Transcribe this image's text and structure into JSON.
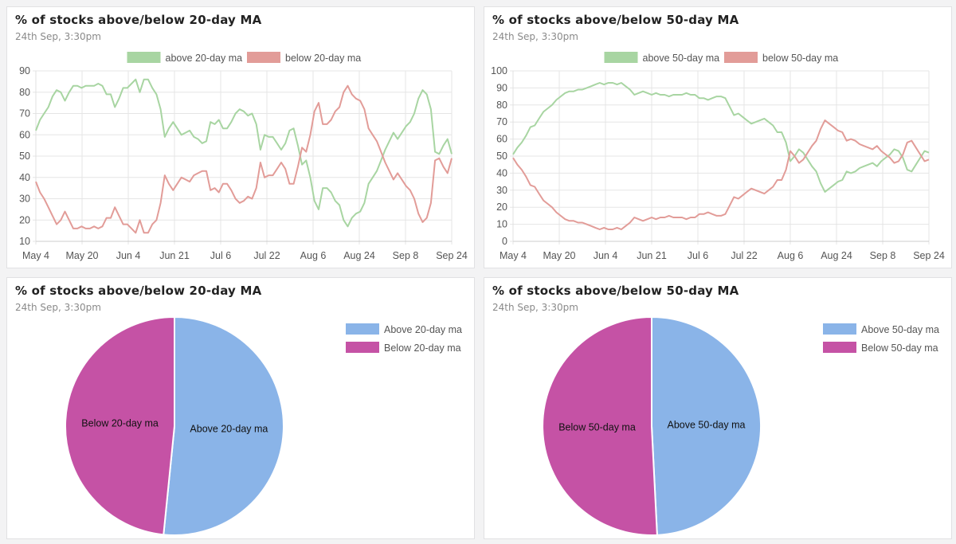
{
  "cards": [
    {
      "title": "% of stocks above/below 20-day MA",
      "subtitle": "24th Sep, 3:30pm"
    },
    {
      "title": "% of stocks above/below 50-day MA",
      "subtitle": "24th Sep, 3:30pm"
    },
    {
      "title": "% of stocks above/below 20-day MA",
      "subtitle": "24th Sep, 3:30pm"
    },
    {
      "title": "% of stocks above/below 50-day MA",
      "subtitle": "24th Sep, 3:30pm"
    }
  ],
  "colors": {
    "above_line": "#a8d5a2",
    "below_line": "#e29c98",
    "pie_above": "#8ab4e8",
    "pie_below": "#c552a5",
    "grid": "#e5e5e5",
    "tick_text": "#555555"
  },
  "chart_data": [
    {
      "type": "line",
      "title": "% of stocks above/below 20-day MA",
      "x_tick_labels": [
        "May 4",
        "May 20",
        "Jun 4",
        "Jun 21",
        "Jul 6",
        "Jul 22",
        "Aug 6",
        "Aug 24",
        "Sep 8",
        "Sep 24"
      ],
      "ylim": [
        10,
        90
      ],
      "y_ticks": [
        10,
        20,
        30,
        40,
        50,
        60,
        70,
        80,
        90
      ],
      "legend": "top",
      "series": [
        {
          "name": "above 20-day ma",
          "values": [
            62,
            67,
            70,
            73,
            78,
            81,
            80,
            76,
            80,
            83,
            83,
            82,
            83,
            83,
            83,
            84,
            83,
            79,
            79,
            73,
            77,
            82,
            82,
            84,
            86,
            80,
            86,
            86,
            82,
            79,
            72,
            59,
            63,
            66,
            63,
            60,
            61,
            62,
            59,
            58,
            56,
            57,
            66,
            65,
            67,
            63,
            63,
            66,
            70,
            72,
            71,
            69,
            70,
            65,
            53,
            60,
            59,
            59,
            56,
            53,
            56,
            62,
            63,
            55,
            46,
            48,
            40,
            29,
            25,
            35,
            35,
            33,
            29,
            27,
            20,
            17,
            21,
            23,
            24,
            28,
            37,
            40,
            43,
            48,
            53,
            57,
            61,
            58,
            61,
            64,
            66,
            70,
            77,
            81,
            79,
            72,
            52,
            51,
            55,
            58,
            51
          ],
          "color": "#a8d5a2"
        },
        {
          "name": "below 20-day ma",
          "values": [
            38,
            33,
            30,
            26,
            22,
            18,
            20,
            24,
            20,
            16,
            16,
            17,
            16,
            16,
            17,
            16,
            17,
            21,
            21,
            26,
            22,
            18,
            18,
            16,
            14,
            20,
            14,
            14,
            18,
            20,
            28,
            41,
            37,
            34,
            37,
            40,
            39,
            38,
            41,
            42,
            43,
            43,
            34,
            35,
            33,
            37,
            37,
            34,
            30,
            28,
            29,
            31,
            30,
            35,
            47,
            40,
            41,
            41,
            44,
            47,
            44,
            37,
            37,
            45,
            54,
            52,
            60,
            71,
            75,
            65,
            65,
            67,
            71,
            73,
            80,
            83,
            79,
            77,
            76,
            72,
            63,
            60,
            57,
            52,
            47,
            43,
            39,
            42,
            39,
            36,
            34,
            30,
            23,
            19,
            21,
            28,
            48,
            49,
            45,
            42,
            49
          ],
          "color": "#e29c98"
        }
      ]
    },
    {
      "type": "line",
      "title": "% of stocks above/below 50-day MA",
      "x_tick_labels": [
        "May 4",
        "May 20",
        "Jun 4",
        "Jun 21",
        "Jul 6",
        "Jul 22",
        "Aug 6",
        "Aug 24",
        "Sep 8",
        "Sep 24"
      ],
      "ylim": [
        0,
        100
      ],
      "y_ticks": [
        0,
        10,
        20,
        30,
        40,
        50,
        60,
        70,
        80,
        90,
        100
      ],
      "legend": "top",
      "series": [
        {
          "name": "above 50-day ma",
          "values": [
            51,
            55,
            58,
            62,
            67,
            68,
            72,
            76,
            78,
            80,
            83,
            85,
            87,
            88,
            88,
            89,
            89,
            90,
            91,
            92,
            93,
            92,
            93,
            93,
            92,
            93,
            91,
            89,
            86,
            87,
            88,
            87,
            86,
            87,
            86,
            86,
            85,
            86,
            86,
            86,
            87,
            86,
            86,
            84,
            84,
            83,
            84,
            85,
            85,
            84,
            79,
            74,
            75,
            73,
            71,
            69,
            70,
            71,
            72,
            70,
            68,
            64,
            64,
            58,
            47,
            50,
            54,
            52,
            48,
            44,
            41,
            34,
            29,
            31,
            33,
            35,
            36,
            41,
            40,
            41,
            43,
            44,
            45,
            46,
            44,
            47,
            49,
            51,
            54,
            53,
            49,
            42,
            41,
            45,
            49,
            53,
            52
          ],
          "color": "#a8d5a2"
        },
        {
          "name": "below 50-day ma",
          "values": [
            49,
            45,
            42,
            38,
            33,
            32,
            28,
            24,
            22,
            20,
            17,
            15,
            13,
            12,
            12,
            11,
            11,
            10,
            9,
            8,
            7,
            8,
            7,
            7,
            8,
            7,
            9,
            11,
            14,
            13,
            12,
            13,
            14,
            13,
            14,
            14,
            15,
            14,
            14,
            14,
            13,
            14,
            14,
            16,
            16,
            17,
            16,
            15,
            15,
            16,
            21,
            26,
            25,
            27,
            29,
            31,
            30,
            29,
            28,
            30,
            32,
            36,
            36,
            42,
            53,
            50,
            46,
            48,
            52,
            56,
            59,
            66,
            71,
            69,
            67,
            65,
            64,
            59,
            60,
            59,
            57,
            56,
            55,
            54,
            56,
            53,
            51,
            49,
            46,
            47,
            51,
            58,
            59,
            55,
            51,
            47,
            48
          ],
          "color": "#e29c98"
        }
      ]
    },
    {
      "type": "pie",
      "title": "% of stocks above/below 20-day MA",
      "labels": [
        "Above 20-day ma",
        "Below 20-day ma"
      ],
      "values": [
        51.6,
        48.4
      ],
      "colors": [
        "#8ab4e8",
        "#c552a5"
      ],
      "legend": "top-right"
    },
    {
      "type": "pie",
      "title": "% of stocks above/below 50-day MA",
      "labels": [
        "Above 50-day ma",
        "Below 50-day ma"
      ],
      "values": [
        49.2,
        50.8
      ],
      "colors": [
        "#8ab4e8",
        "#c552a5"
      ],
      "legend": "top-right"
    }
  ]
}
